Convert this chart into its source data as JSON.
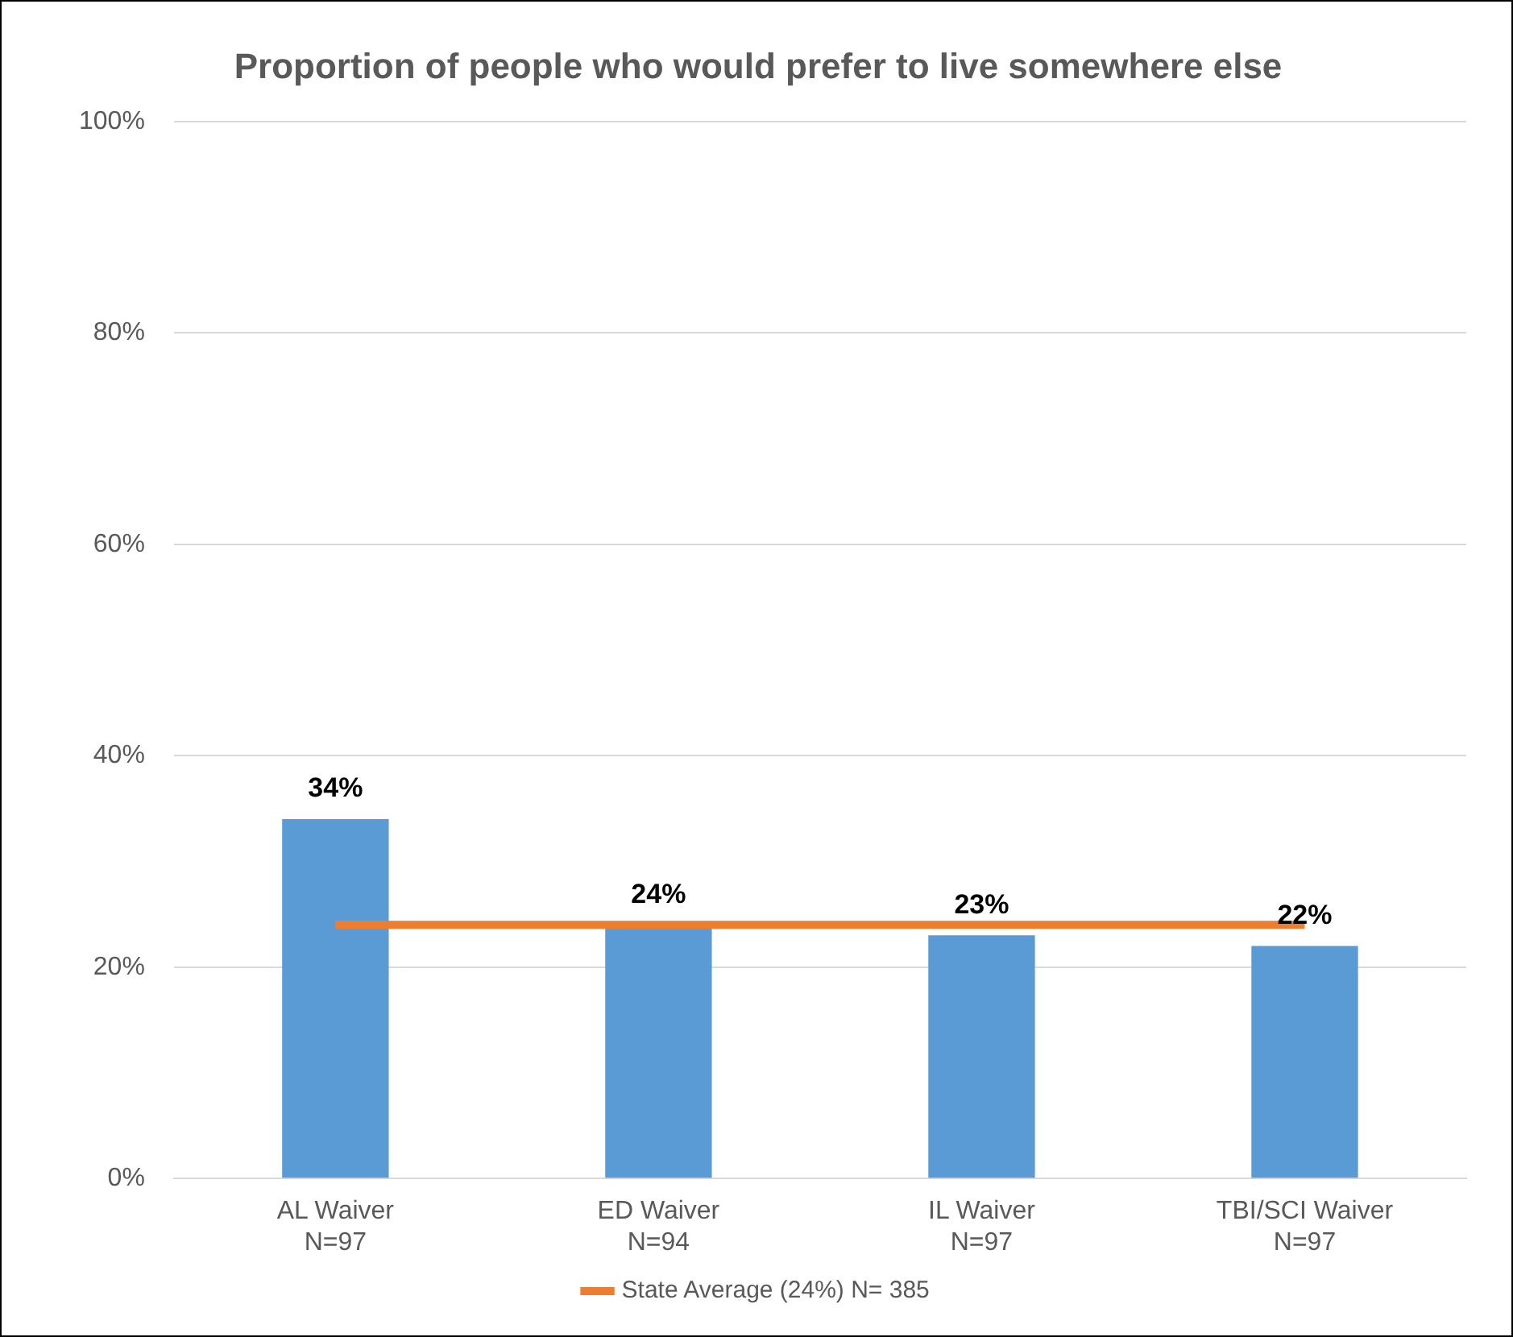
{
  "chart_data": {
    "type": "bar",
    "title": "Proportion of people who would prefer to live somewhere else",
    "categories": [
      "AL Waiver\nN=97",
      "ED Waiver\nN=94",
      "IL Waiver\nN=97",
      "TBI/SCI Waiver\nN=97"
    ],
    "series": [
      {
        "color": "#5b9bd5",
        "values": [
          34,
          24,
          23,
          22
        ],
        "value_labels": [
          "34%",
          "24%",
          "23%",
          "22%"
        ]
      },
      {
        "type": "line",
        "name": "State Average (24%) N= 385",
        "color": "#ed7d31",
        "values": [
          24,
          24,
          24,
          24
        ]
      }
    ],
    "ylim": [
      0,
      100
    ],
    "yticks": [
      {
        "value": 0,
        "label": "0%"
      },
      {
        "value": 20,
        "label": "20%"
      },
      {
        "value": 40,
        "label": "40%"
      },
      {
        "value": 60,
        "label": "60%"
      },
      {
        "value": 80,
        "label": "80%"
      },
      {
        "value": 100,
        "label": "100%"
      }
    ],
    "grid": "y",
    "legend": "bottom",
    "marker": "none"
  }
}
